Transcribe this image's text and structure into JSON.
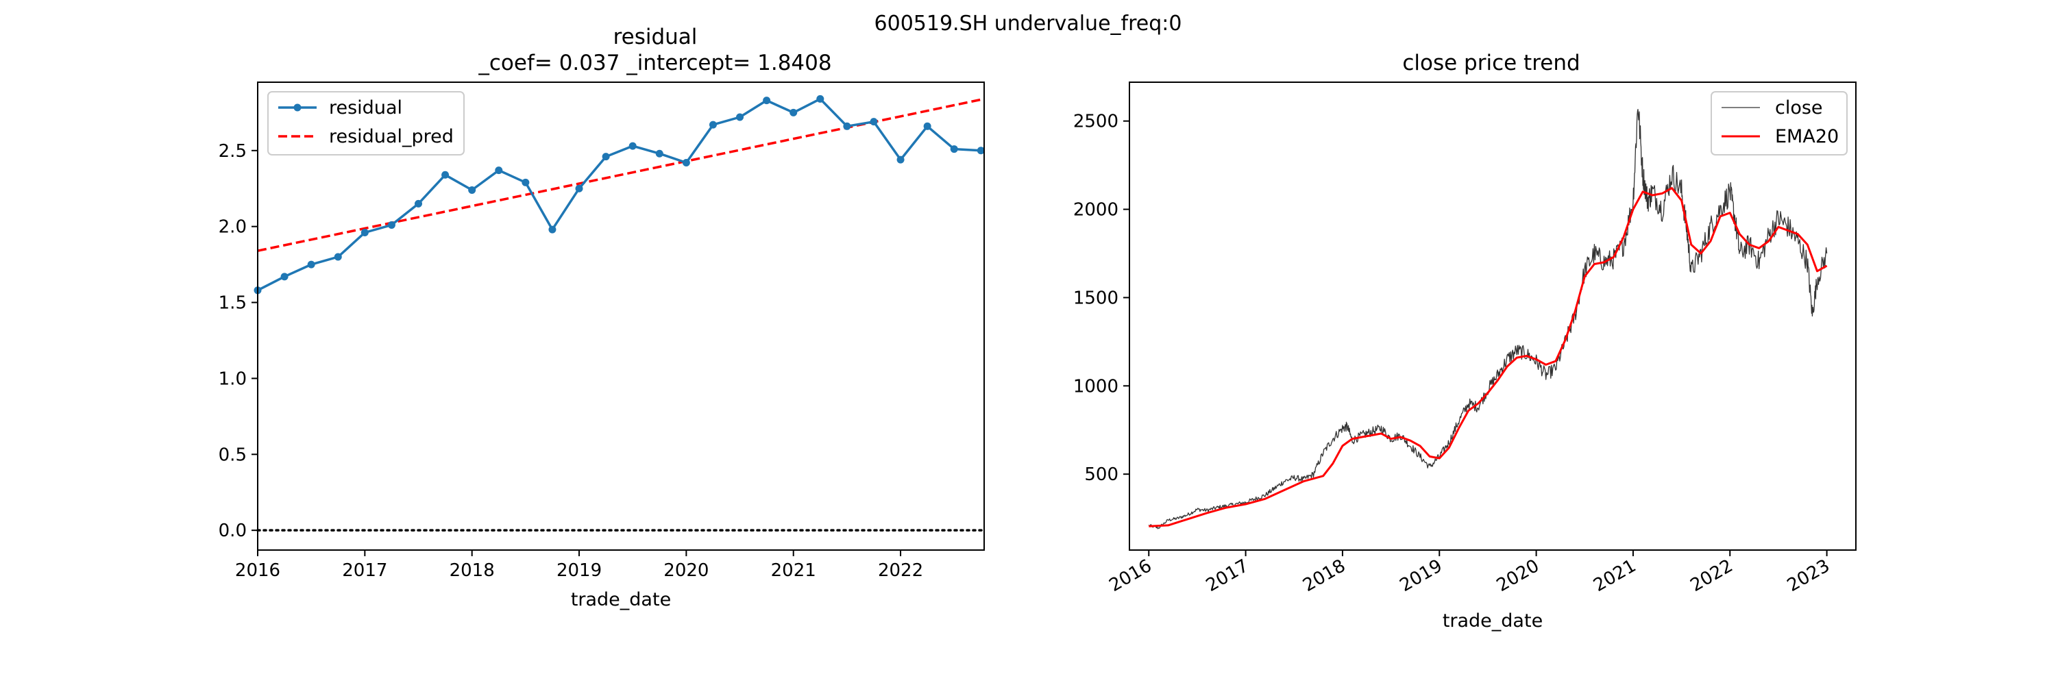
{
  "figure": {
    "suptitle": "600519.SH undervalue_freq:0"
  },
  "chart_data": [
    {
      "type": "line",
      "title_line1": "residual",
      "title_line2": "_coef= 0.037   _intercept= 1.8408",
      "xlabel": "trade_date",
      "ylabel": "",
      "xlim": [
        2016.0,
        2022.78
      ],
      "ylim": [
        -0.13,
        2.95
      ],
      "x_ticks": [
        2016,
        2017,
        2018,
        2019,
        2020,
        2021,
        2022
      ],
      "x_tick_labels": [
        "2016",
        "2017",
        "2018",
        "2019",
        "2020",
        "2021",
        "2022"
      ],
      "y_ticks": [
        0.0,
        0.5,
        1.0,
        1.5,
        2.0,
        2.5
      ],
      "y_tick_labels": [
        "0.0",
        "0.5",
        "1.0",
        "1.5",
        "2.0",
        "2.5"
      ],
      "legend": {
        "position": "top-left",
        "entries": [
          "residual",
          "residual_pred"
        ]
      },
      "series": [
        {
          "name": "residual",
          "color": "#1f77b4",
          "style": "solid-markers",
          "x": [
            2016.0,
            2016.25,
            2016.5,
            2016.75,
            2017.0,
            2017.25,
            2017.5,
            2017.75,
            2018.0,
            2018.25,
            2018.5,
            2018.75,
            2019.0,
            2019.25,
            2019.5,
            2019.75,
            2020.0,
            2020.25,
            2020.5,
            2020.75,
            2021.0,
            2021.25,
            2021.5,
            2021.75,
            2022.0,
            2022.25,
            2022.5,
            2022.75
          ],
          "values": [
            1.58,
            1.67,
            1.75,
            1.8,
            1.96,
            2.01,
            2.15,
            2.34,
            2.24,
            2.37,
            2.29,
            1.98,
            2.25,
            2.46,
            2.53,
            2.48,
            2.42,
            2.67,
            2.72,
            2.83,
            2.75,
            2.84,
            2.66,
            2.69,
            2.44,
            2.66,
            2.51,
            2.5
          ]
        },
        {
          "name": "residual_pred",
          "color": "#ff0000",
          "style": "dashed",
          "x": [
            2016.0,
            2022.78
          ],
          "values": [
            1.84,
            2.84
          ]
        },
        {
          "name": "zero_line",
          "color": "#000000",
          "style": "dotted",
          "x": [
            2016.0,
            2022.78
          ],
          "values": [
            0.0,
            0.0
          ]
        }
      ]
    },
    {
      "type": "line",
      "title": "close price trend",
      "xlabel": "trade_date",
      "ylabel": "",
      "xlim": [
        2015.8,
        2023.3
      ],
      "ylim": [
        70,
        2720
      ],
      "x_ticks": [
        2016,
        2017,
        2018,
        2019,
        2020,
        2021,
        2022,
        2023
      ],
      "x_tick_labels": [
        "2016",
        "2017",
        "2018",
        "2019",
        "2020",
        "2021",
        "2022",
        "2023"
      ],
      "y_ticks": [
        500,
        1000,
        1500,
        2000,
        2500
      ],
      "y_tick_labels": [
        "500",
        "1000",
        "1500",
        "2000",
        "2500"
      ],
      "legend": {
        "position": "top-right",
        "entries": [
          "close",
          "EMA20"
        ]
      },
      "series": [
        {
          "name": "close",
          "color": "#000000",
          "style": "thin",
          "x": [
            2016.0,
            2016.1,
            2016.2,
            2016.3,
            2016.4,
            2016.5,
            2016.6,
            2016.7,
            2016.8,
            2016.9,
            2017.0,
            2017.1,
            2017.2,
            2017.3,
            2017.4,
            2017.5,
            2017.6,
            2017.7,
            2017.8,
            2017.9,
            2018.0,
            2018.05,
            2018.1,
            2018.2,
            2018.3,
            2018.4,
            2018.5,
            2018.6,
            2018.7,
            2018.8,
            2018.9,
            2019.0,
            2019.1,
            2019.2,
            2019.3,
            2019.4,
            2019.5,
            2019.6,
            2019.7,
            2019.8,
            2019.9,
            2020.0,
            2020.1,
            2020.2,
            2020.3,
            2020.4,
            2020.5,
            2020.6,
            2020.7,
            2020.8,
            2020.9,
            2021.0,
            2021.05,
            2021.1,
            2021.15,
            2021.2,
            2021.3,
            2021.4,
            2021.5,
            2021.55,
            2021.6,
            2021.7,
            2021.8,
            2021.9,
            2022.0,
            2022.05,
            2022.1,
            2022.2,
            2022.3,
            2022.4,
            2022.5,
            2022.6,
            2022.7,
            2022.8,
            2022.85,
            2022.9,
            2023.0
          ],
          "values": [
            210,
            195,
            240,
            250,
            270,
            300,
            295,
            310,
            320,
            330,
            340,
            360,
            380,
            420,
            460,
            480,
            470,
            500,
            620,
            700,
            760,
            770,
            690,
            720,
            740,
            760,
            700,
            720,
            660,
            600,
            540,
            600,
            680,
            800,
            900,
            880,
            980,
            1060,
            1150,
            1200,
            1180,
            1140,
            1060,
            1100,
            1250,
            1400,
            1650,
            1750,
            1700,
            1720,
            1800,
            2050,
            2600,
            2200,
            2050,
            2100,
            2000,
            2200,
            2100,
            1900,
            1650,
            1750,
            1900,
            2000,
            2100,
            1950,
            1750,
            1800,
            1700,
            1850,
            1950,
            1900,
            1820,
            1700,
            1400,
            1600,
            1750
          ]
        },
        {
          "name": "EMA20",
          "color": "#ff0000",
          "style": "solid",
          "x": [
            2016.0,
            2016.2,
            2016.4,
            2016.6,
            2016.8,
            2017.0,
            2017.2,
            2017.4,
            2017.6,
            2017.8,
            2017.9,
            2018.0,
            2018.1,
            2018.2,
            2018.3,
            2018.4,
            2018.5,
            2018.6,
            2018.7,
            2018.8,
            2018.9,
            2019.0,
            2019.1,
            2019.2,
            2019.3,
            2019.4,
            2019.5,
            2019.6,
            2019.7,
            2019.8,
            2019.9,
            2020.0,
            2020.1,
            2020.2,
            2020.3,
            2020.4,
            2020.5,
            2020.6,
            2020.7,
            2020.8,
            2020.9,
            2021.0,
            2021.1,
            2021.2,
            2021.3,
            2021.4,
            2021.5,
            2021.6,
            2021.7,
            2021.8,
            2021.9,
            2022.0,
            2022.1,
            2022.2,
            2022.3,
            2022.4,
            2022.5,
            2022.6,
            2022.7,
            2022.8,
            2022.9,
            2023.0
          ],
          "values": [
            205,
            210,
            245,
            280,
            310,
            330,
            360,
            410,
            460,
            490,
            560,
            660,
            700,
            710,
            720,
            730,
            700,
            710,
            690,
            660,
            600,
            590,
            650,
            760,
            860,
            900,
            960,
            1030,
            1110,
            1160,
            1170,
            1150,
            1120,
            1140,
            1260,
            1420,
            1620,
            1690,
            1700,
            1730,
            1840,
            2000,
            2100,
            2080,
            2090,
            2120,
            2050,
            1800,
            1750,
            1820,
            1960,
            1980,
            1860,
            1800,
            1780,
            1820,
            1900,
            1880,
            1860,
            1800,
            1650,
            1680
          ]
        }
      ]
    }
  ]
}
